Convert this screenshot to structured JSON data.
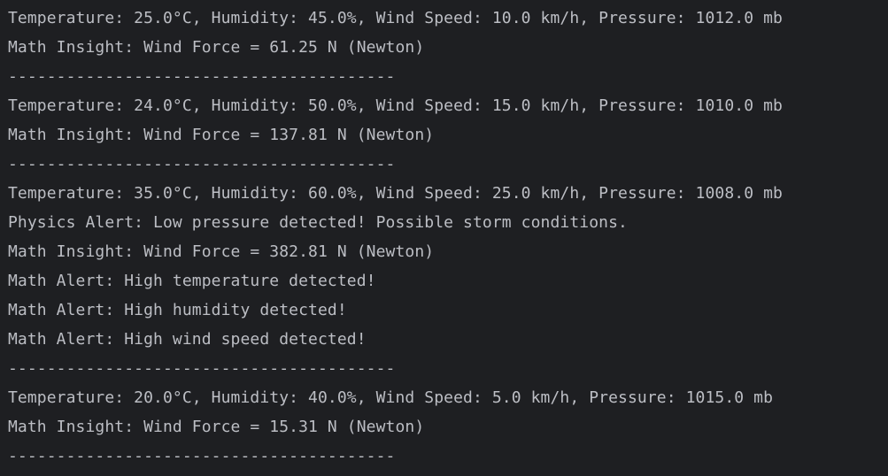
{
  "console": {
    "lines": [
      "Temperature: 25.0°C, Humidity: 45.0%, Wind Speed: 10.0 km/h, Pressure: 1012.0 mb",
      "Math Insight: Wind Force = 61.25 N (Newton)",
      "----------------------------------------",
      "Temperature: 24.0°C, Humidity: 50.0%, Wind Speed: 15.0 km/h, Pressure: 1010.0 mb",
      "Math Insight: Wind Force = 137.81 N (Newton)",
      "----------------------------------------",
      "Temperature: 35.0°C, Humidity: 60.0%, Wind Speed: 25.0 km/h, Pressure: 1008.0 mb",
      "Physics Alert: Low pressure detected! Possible storm conditions.",
      "Math Insight: Wind Force = 382.81 N (Newton)",
      "Math Alert: High temperature detected!",
      "Math Alert: High humidity detected!",
      "Math Alert: High wind speed detected!",
      "----------------------------------------",
      "Temperature: 20.0°C, Humidity: 40.0%, Wind Speed: 5.0 km/h, Pressure: 1015.0 mb",
      "Math Insight: Wind Force = 15.31 N (Newton)",
      "----------------------------------------"
    ]
  },
  "colors": {
    "background": "#1e1f22",
    "text": "#bcbec4"
  }
}
